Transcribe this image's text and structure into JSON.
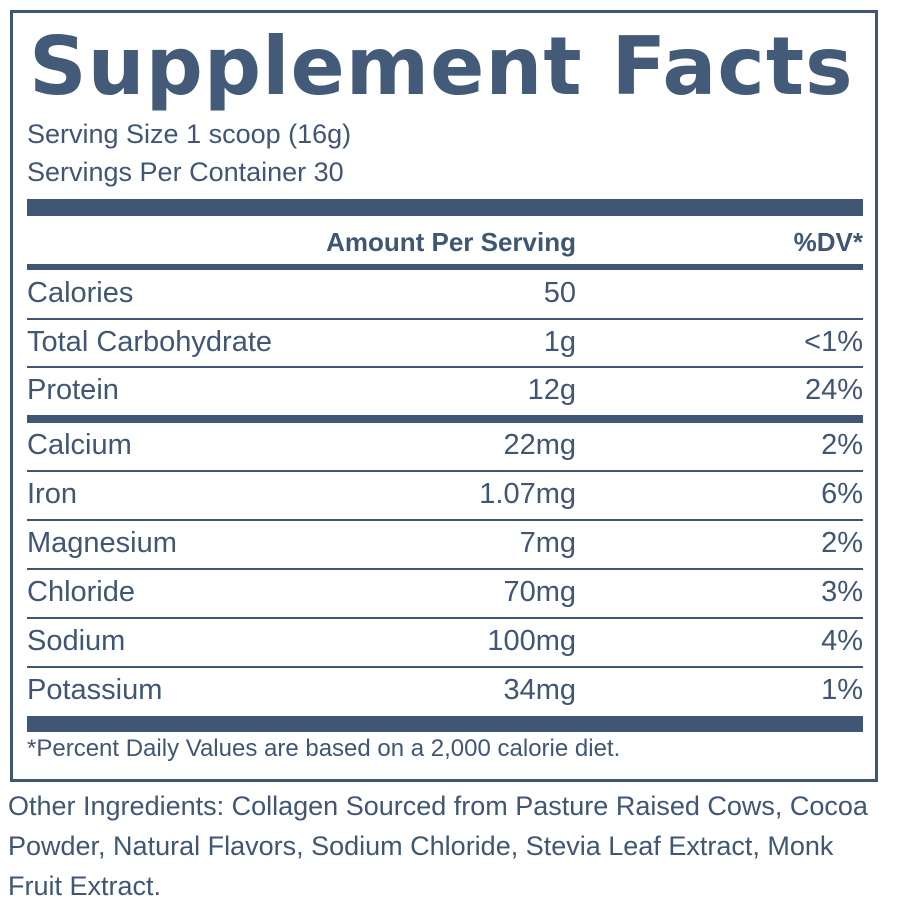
{
  "label": {
    "title": "Supplement Facts",
    "serving_size": "Serving Size 1 scoop (16g)",
    "servings_per_container": "Servings Per Container 30",
    "header": {
      "amount": "Amount Per Serving",
      "dv": "%DV*"
    },
    "rows": [
      {
        "name": "Calories",
        "amount": "50",
        "dv": ""
      },
      {
        "name": "Total Carbohydrate",
        "amount": "1g",
        "dv": "<1%"
      },
      {
        "name": "Protein",
        "amount": "12g",
        "dv": "24%"
      },
      {
        "name": "Calcium",
        "amount": "22mg",
        "dv": "2%"
      },
      {
        "name": "Iron",
        "amount": "1.07mg",
        "dv": "6%"
      },
      {
        "name": "Magnesium",
        "amount": "7mg",
        "dv": "2%"
      },
      {
        "name": "Chloride",
        "amount": "70mg",
        "dv": "3%"
      },
      {
        "name": "Sodium",
        "amount": "100mg",
        "dv": "4%"
      },
      {
        "name": "Potassium",
        "amount": "34mg",
        "dv": "1%"
      }
    ],
    "footnote": "*Percent Daily Values are based on a 2,000 calorie diet.",
    "other_ingredients": "Other Ingredients: Collagen Sourced from Pasture Raised Cows, Cocoa Powder, Natural Flavors, Sodium Chloride, Stevia Leaf Extract, Monk Fruit Extract."
  },
  "colors": {
    "ink": "#3f5674"
  }
}
